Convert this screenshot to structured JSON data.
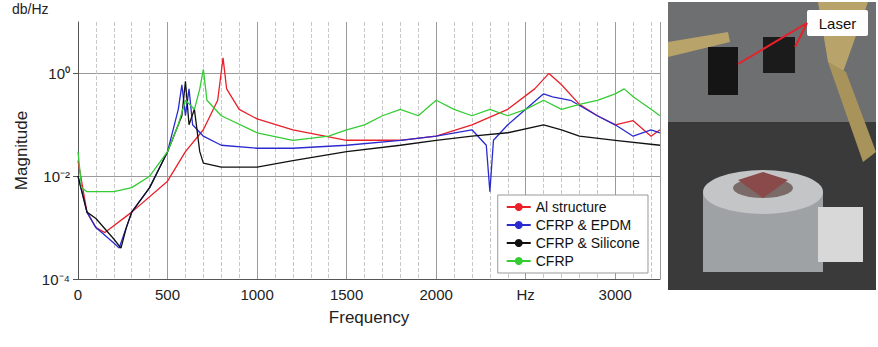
{
  "chart_data": {
    "type": "line",
    "x_label": "Frequency",
    "y_label": "Magnitude",
    "annotations": [
      "db/Hz"
    ],
    "log": "y",
    "grid": true,
    "legend": "lower right",
    "xlim": [
      0,
      3250
    ],
    "xticks": [
      0,
      500,
      1000,
      1500,
      2000,
      {
        "value": 2500,
        "label": "Hz"
      },
      3000
    ],
    "ylim": [
      0.0001,
      10
    ],
    "yticks": [
      {
        "value": 0.0001,
        "label": "10⁻⁴"
      },
      {
        "value": 0.01,
        "label": "10⁻²"
      },
      {
        "value": 1,
        "label": "10⁰"
      }
    ],
    "series": [
      {
        "name": "Al structure",
        "color": "#e8202a",
        "x": [
          0,
          50,
          100,
          150,
          300,
          500,
          600,
          700,
          780,
          810,
          830,
          900,
          1000,
          1200,
          1500,
          1800,
          2000,
          2200,
          2400,
          2550,
          2630,
          2700,
          2800,
          2900,
          3000,
          3100,
          3200,
          3250
        ],
        "values": [
          0.02,
          0.002,
          0.001,
          0.0008,
          0.002,
          0.008,
          0.03,
          0.08,
          0.3,
          2.0,
          0.5,
          0.2,
          0.13,
          0.08,
          0.05,
          0.05,
          0.06,
          0.1,
          0.2,
          0.5,
          1.0,
          0.6,
          0.25,
          0.15,
          0.1,
          0.12,
          0.06,
          0.08
        ]
      },
      {
        "name": "CFRP & EPDM",
        "color": "#2a2ad0",
        "x": [
          0,
          50,
          100,
          200,
          230,
          260,
          300,
          400,
          500,
          560,
          580,
          600,
          620,
          640,
          700,
          800,
          1000,
          1200,
          1500,
          1800,
          2000,
          2200,
          2280,
          2300,
          2320,
          2400,
          2500,
          2600,
          2650,
          2750,
          2900,
          3000,
          3100,
          3200,
          3250
        ],
        "values": [
          0.01,
          0.002,
          0.001,
          0.0005,
          0.0004,
          0.0008,
          0.002,
          0.006,
          0.03,
          0.2,
          0.6,
          0.15,
          0.5,
          0.1,
          0.06,
          0.04,
          0.035,
          0.035,
          0.04,
          0.05,
          0.06,
          0.08,
          0.04,
          0.005,
          0.05,
          0.1,
          0.2,
          0.4,
          0.35,
          0.3,
          0.15,
          0.1,
          0.06,
          0.08,
          0.07
        ]
      },
      {
        "name": "CFRP & Silicone",
        "color": "#111111",
        "x": [
          0,
          50,
          100,
          200,
          240,
          270,
          300,
          400,
          500,
          580,
          600,
          620,
          650,
          680,
          700,
          800,
          1000,
          1200,
          1500,
          1800,
          2000,
          2200,
          2400,
          2600,
          2700,
          2800,
          3000,
          3250
        ],
        "values": [
          0.01,
          0.002,
          0.0015,
          0.0006,
          0.0004,
          0.001,
          0.002,
          0.006,
          0.03,
          0.15,
          0.7,
          0.1,
          0.2,
          0.03,
          0.018,
          0.015,
          0.015,
          0.02,
          0.03,
          0.04,
          0.05,
          0.06,
          0.07,
          0.1,
          0.08,
          0.06,
          0.05,
          0.04
        ]
      },
      {
        "name": "CFRP",
        "color": "#33cc33",
        "x": [
          0,
          20,
          50,
          200,
          300,
          400,
          500,
          560,
          600,
          650,
          680,
          700,
          720,
          800,
          1000,
          1200,
          1400,
          1500,
          1600,
          1700,
          1800,
          1900,
          2000,
          2100,
          2200,
          2300,
          2400,
          2500,
          2600,
          2700,
          2800,
          2900,
          3000,
          3050,
          3100,
          3200,
          3250
        ],
        "values": [
          0.03,
          0.006,
          0.005,
          0.005,
          0.006,
          0.01,
          0.03,
          0.1,
          0.3,
          0.2,
          0.5,
          1.2,
          0.3,
          0.15,
          0.07,
          0.05,
          0.06,
          0.08,
          0.1,
          0.15,
          0.2,
          0.15,
          0.3,
          0.2,
          0.15,
          0.2,
          0.15,
          0.2,
          0.3,
          0.2,
          0.25,
          0.3,
          0.4,
          0.5,
          0.35,
          0.2,
          0.15
        ]
      }
    ]
  },
  "photo": {
    "annotation": "Laser"
  }
}
